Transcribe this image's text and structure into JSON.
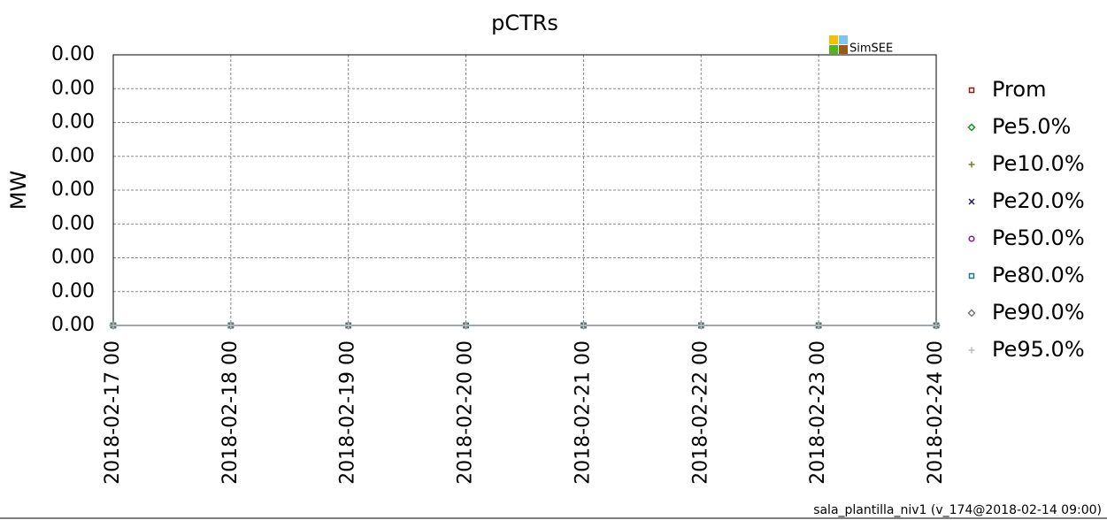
{
  "chart_data": {
    "type": "line",
    "title": "pCTRs",
    "y_label": "MW",
    "logo": "SimSEE",
    "footer": "sala_plantilla_niv1 (v_174@2018-02-14 09:00)",
    "x": [
      "2018-02-17 00",
      "2018-02-18 00",
      "2018-02-19 00",
      "2018-02-20 00",
      "2018-02-21 00",
      "2018-02-22 00",
      "2018-02-23 00",
      "2018-02-24 00"
    ],
    "xticks": [
      "2018-02-17 00",
      "2018-02-18 00",
      "2018-02-19 00",
      "2018-02-20 00",
      "2018-02-21 00",
      "2018-02-22 00",
      "2018-02-23 00",
      "2018-02-24 00"
    ],
    "ylim": [
      0,
      0.004
    ],
    "yticks": [
      {
        "value": 0,
        "label": "0.00"
      },
      {
        "value": 0.0005,
        "label": "0.00"
      },
      {
        "value": 0.001,
        "label": "0.00"
      },
      {
        "value": 0.0015,
        "label": "0.00"
      },
      {
        "value": 0.002,
        "label": "0.00"
      },
      {
        "value": 0.0025,
        "label": "0.00"
      },
      {
        "value": 0.003,
        "label": "0.00"
      },
      {
        "value": 0.0035,
        "label": "0.00"
      },
      {
        "value": 0.004,
        "label": "0.00"
      }
    ],
    "grid": true,
    "legend": "right",
    "series": [
      {
        "name": "Prom",
        "color": "#8b1a1a",
        "marker": "square",
        "values": [
          0,
          0,
          0,
          0,
          0,
          0,
          0,
          0
        ]
      },
      {
        "name": "Pe5.0%",
        "color": "#1a8c1a",
        "marker": "diamond",
        "values": [
          0,
          0,
          0,
          0,
          0,
          0,
          0,
          0
        ]
      },
      {
        "name": "Pe10.0%",
        "color": "#7a7a1a",
        "marker": "plus",
        "values": [
          0,
          0,
          0,
          0,
          0,
          0,
          0,
          0
        ]
      },
      {
        "name": "Pe20.0%",
        "color": "#1a1a6e",
        "marker": "cross",
        "values": [
          0,
          0,
          0,
          0,
          0,
          0,
          0,
          0
        ]
      },
      {
        "name": "Pe50.0%",
        "color": "#8a1a8a",
        "marker": "circle",
        "values": [
          0,
          0,
          0,
          0,
          0,
          0,
          0,
          0
        ]
      },
      {
        "name": "Pe80.0%",
        "color": "#1a7a8a",
        "marker": "square",
        "values": [
          0,
          0,
          0,
          0,
          0,
          0,
          0,
          0
        ]
      },
      {
        "name": "Pe90.0%",
        "color": "#777777",
        "marker": "diamond",
        "values": [
          0,
          0,
          0,
          0,
          0,
          0,
          0,
          0
        ]
      },
      {
        "name": "Pe95.0%",
        "color": "#bbbbbb",
        "marker": "plus",
        "values": [
          0,
          0,
          0,
          0,
          0,
          0,
          0,
          0
        ]
      }
    ]
  }
}
